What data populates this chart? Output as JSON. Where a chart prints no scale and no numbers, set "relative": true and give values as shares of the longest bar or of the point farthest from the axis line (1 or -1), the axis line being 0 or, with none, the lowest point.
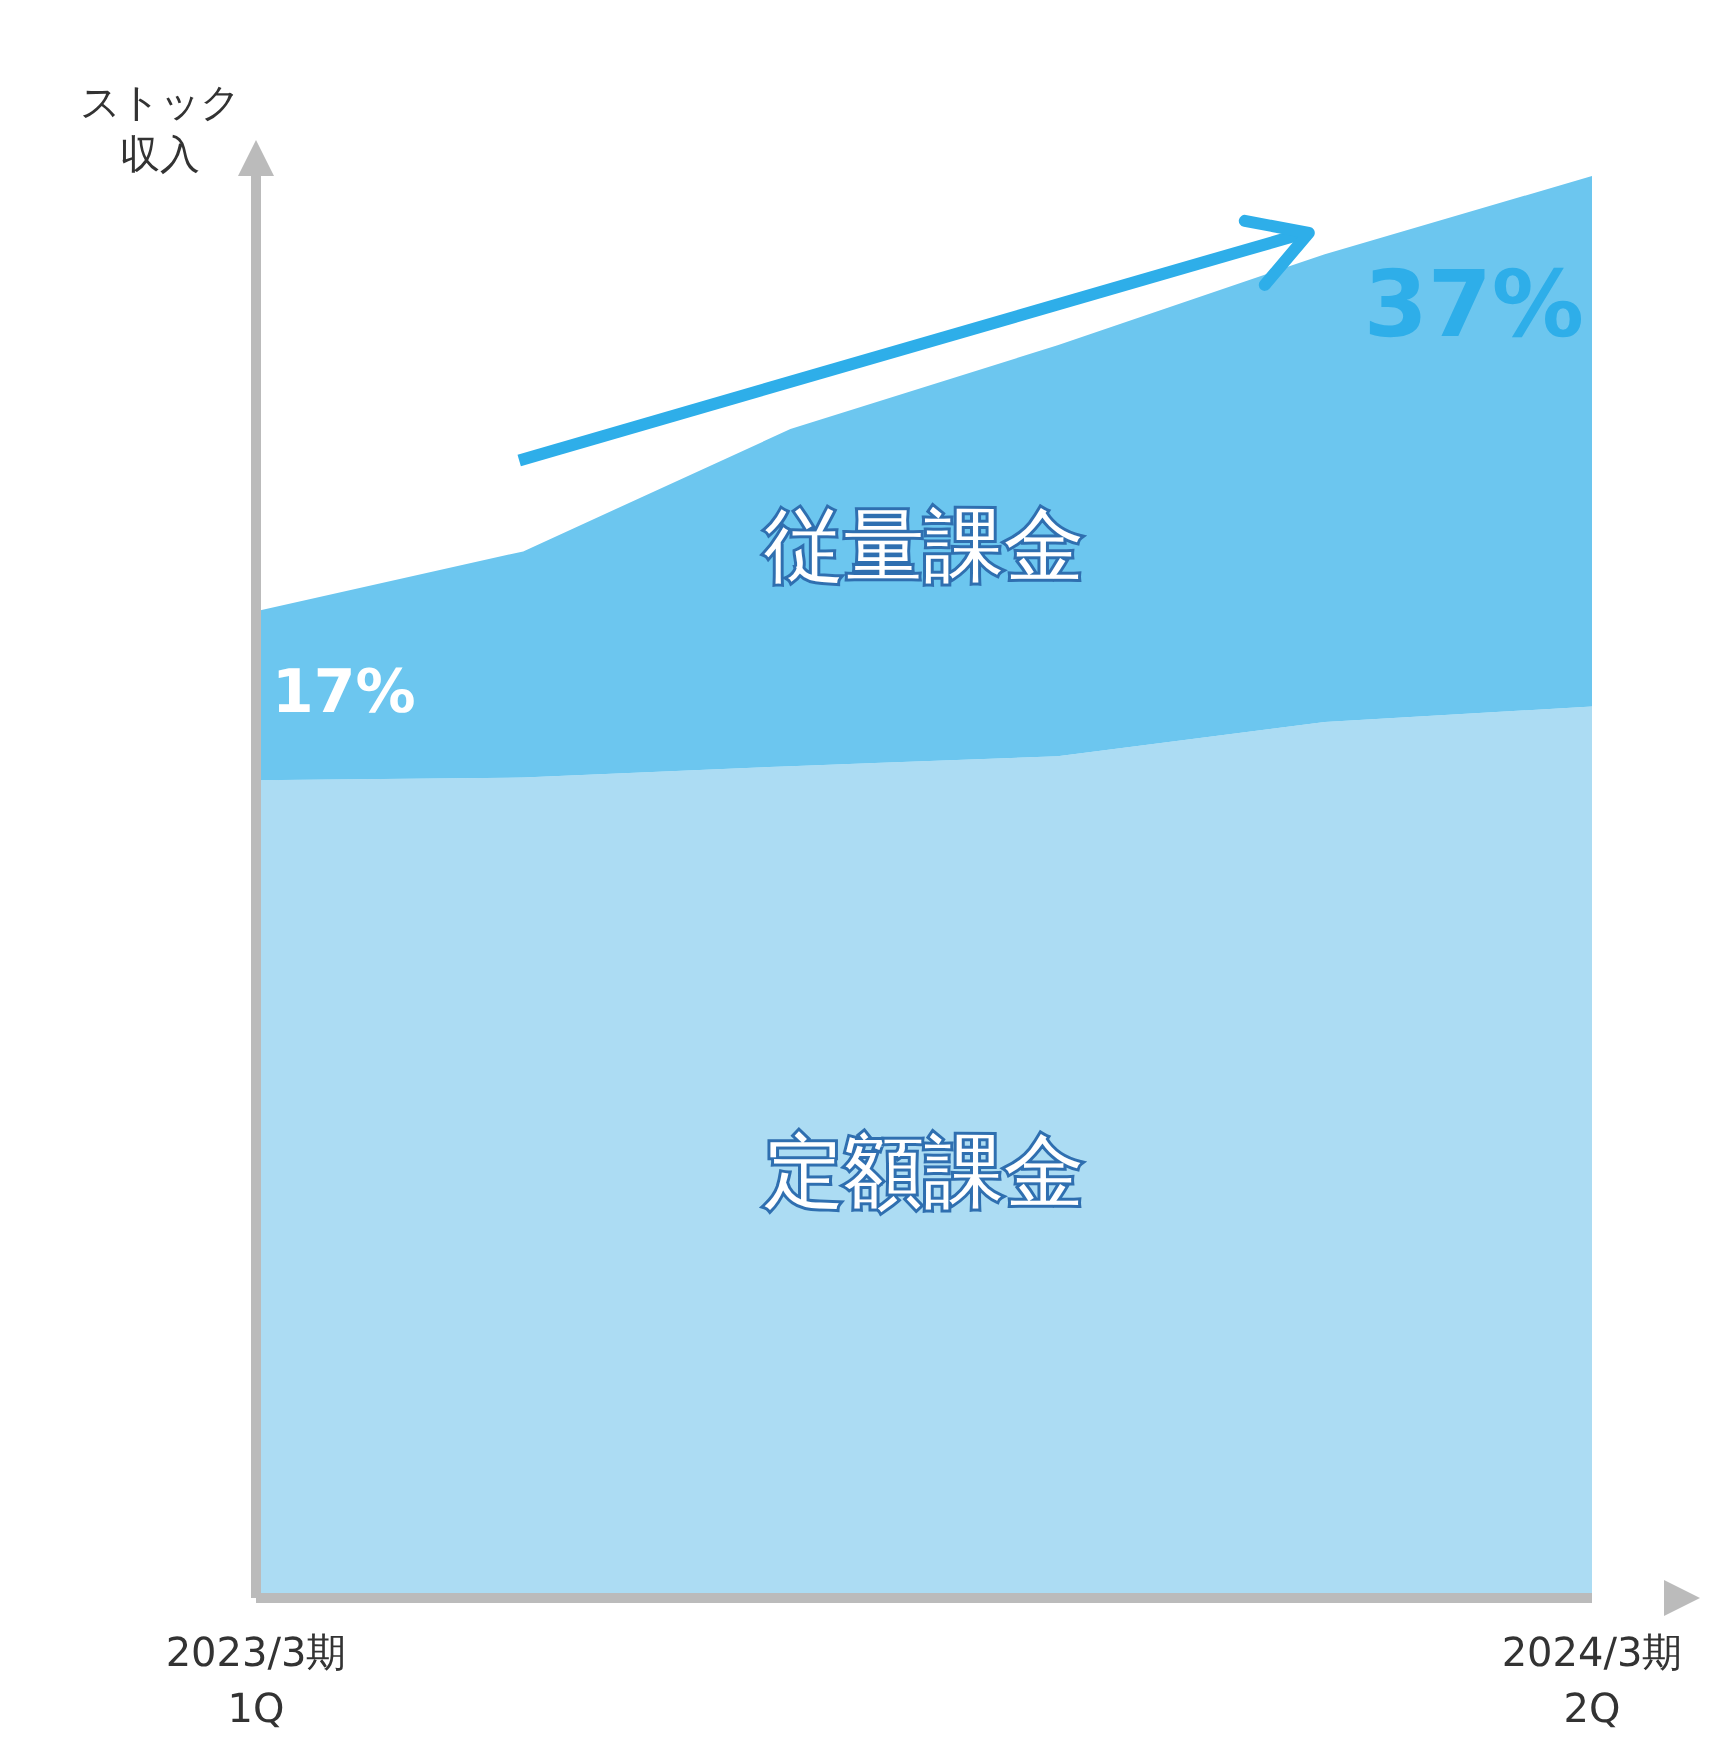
{
  "chart_data": {
    "type": "area",
    "stacked": true,
    "relative": true,
    "ylabel": "ストック収入",
    "categories": [
      "2023/3期\n1Q",
      null,
      null,
      null,
      null,
      "2024/3期\n2Q"
    ],
    "series": [
      {
        "name": "定額課金",
        "color": "#acdcf3",
        "values": [
          0.575,
          0.577,
          0.585,
          0.592,
          0.616,
          0.627
        ]
      },
      {
        "name": "従量課金",
        "color": "#6cc6ef",
        "values": [
          0.119,
          0.159,
          0.237,
          0.289,
          0.329,
          0.373
        ]
      }
    ],
    "annotations": [
      "17%",
      "37%"
    ],
    "grid": false,
    "legend": false
  }
}
